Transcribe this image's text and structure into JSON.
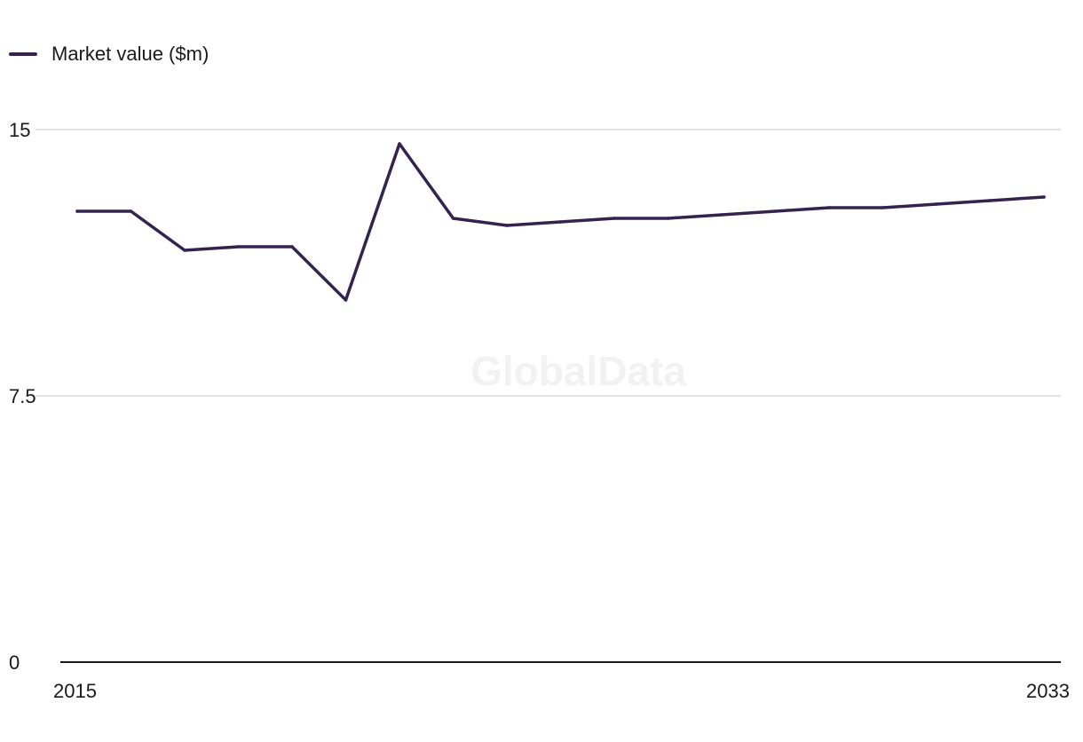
{
  "legend": {
    "label": "Market value ($m)"
  },
  "watermark": "GlobalData",
  "colors": {
    "series": "#35234f",
    "grid": "#d9d9d9",
    "axis": "#1a1a1a"
  },
  "chart_data": {
    "type": "line",
    "title": "",
    "xlabel": "",
    "ylabel": "",
    "x": [
      2015,
      2016,
      2017,
      2018,
      2019,
      2020,
      2021,
      2022,
      2023,
      2024,
      2025,
      2026,
      2027,
      2028,
      2029,
      2030,
      2031,
      2032,
      2033
    ],
    "x_tick_labels": [
      "2015",
      "2033"
    ],
    "y_ticks": [
      {
        "value": 0,
        "label": "0"
      },
      {
        "value": 7.5,
        "label": "7.5"
      },
      {
        "value": 15,
        "label": "15"
      }
    ],
    "ylim": [
      0,
      15
    ],
    "grid": true,
    "legend_position": "top-left",
    "series": [
      {
        "name": "Market value ($m)",
        "values": [
          12.7,
          12.7,
          11.6,
          11.7,
          11.7,
          10.2,
          14.6,
          12.5,
          12.3,
          12.4,
          12.5,
          12.5,
          12.6,
          12.7,
          12.8,
          12.8,
          12.9,
          13.0,
          13.1
        ]
      }
    ]
  }
}
